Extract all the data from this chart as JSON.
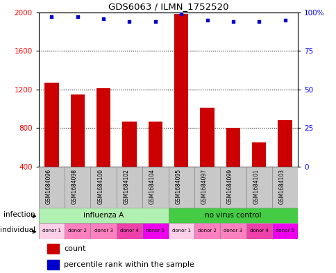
{
  "title": "GDS6063 / ILMN_1752520",
  "samples": [
    "GSM1684096",
    "GSM1684098",
    "GSM1684100",
    "GSM1684102",
    "GSM1684104",
    "GSM1684095",
    "GSM1684097",
    "GSM1684099",
    "GSM1684101",
    "GSM1684103"
  ],
  "counts": [
    1270,
    1150,
    1210,
    870,
    870,
    1980,
    1010,
    800,
    650,
    880
  ],
  "percentiles": [
    97,
    97,
    96,
    94,
    94,
    99,
    95,
    94,
    94,
    95
  ],
  "infection_groups": [
    {
      "label": "influenza A",
      "start": 0,
      "end": 5,
      "color": "#b0f0b0"
    },
    {
      "label": "no virus control",
      "start": 5,
      "end": 10,
      "color": "#44cc44"
    }
  ],
  "donors": [
    "donor 1",
    "donor 2",
    "donor 3",
    "donor 4",
    "donor 5",
    "donor 1",
    "donor 2",
    "donor 3",
    "donor 4",
    "donor 5"
  ],
  "donor_colors": [
    "#ffd0e8",
    "#ff80c0",
    "#ff80c0",
    "#ee40aa",
    "#ee00ee",
    "#ffd0e8",
    "#ff80c0",
    "#ff80c0",
    "#ee40aa",
    "#ee00ee"
  ],
  "bar_color": "#cc0000",
  "dot_color": "#0000cc",
  "ylim_left": [
    400,
    2000
  ],
  "ylim_right": [
    0,
    100
  ],
  "yticks_left": [
    400,
    800,
    1200,
    1600,
    2000
  ],
  "yticks_right": [
    0,
    25,
    50,
    75,
    100
  ],
  "ytick_labels_right": [
    "0",
    "25",
    "50",
    "75",
    "100%"
  ],
  "sample_bg_color": "#c8c8c8",
  "legend_count_color": "#cc0000",
  "legend_pct_color": "#0000cc",
  "bg_color": "#ffffff"
}
